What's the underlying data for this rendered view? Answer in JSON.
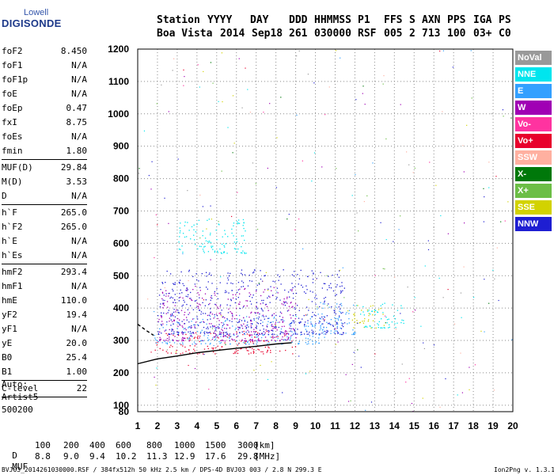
{
  "logo": {
    "line1": "Lowell",
    "line2": "DIGISONDE"
  },
  "header": {
    "row1": [
      "Station",
      "YYYY",
      "DAY",
      "DDD",
      "HHMMSS",
      "P1",
      "FFS",
      "S",
      "AXN",
      "PPS",
      "IGA",
      "PS"
    ],
    "row2": [
      "Boa Vista",
      "2014",
      "Sep18",
      "261",
      "030000",
      "RSF",
      "005",
      "2",
      "713",
      "100",
      "03+",
      "C0"
    ]
  },
  "params": {
    "g1": [
      {
        "label": "foF2",
        "value": "8.450"
      },
      {
        "label": "foF1",
        "value": "N/A"
      },
      {
        "label": "foF1p",
        "value": "N/A"
      },
      {
        "label": "foE",
        "value": "N/A"
      },
      {
        "label": "foEp",
        "value": "0.47"
      },
      {
        "label": "fxI",
        "value": "8.75"
      },
      {
        "label": "foEs",
        "value": "N/A"
      },
      {
        "label": "fmin",
        "value": "1.80"
      }
    ],
    "g2": [
      {
        "label": "MUF(D)",
        "value": "29.84"
      },
      {
        "label": "M(D)",
        "value": "3.53"
      },
      {
        "label": "D",
        "value": "N/A"
      }
    ],
    "g3": [
      {
        "label": "h`F",
        "value": "265.0"
      },
      {
        "label": "h`F2",
        "value": "265.0"
      },
      {
        "label": "h`E",
        "value": "N/A"
      },
      {
        "label": "h`Es",
        "value": "N/A"
      }
    ],
    "g4": [
      {
        "label": "hmF2",
        "value": "293.4"
      },
      {
        "label": "hmF1",
        "value": "N/A"
      },
      {
        "label": "hmE",
        "value": "110.0"
      },
      {
        "label": "yF2",
        "value": "19.4"
      },
      {
        "label": "yF1",
        "value": "N/A"
      },
      {
        "label": "yE",
        "value": "20.0"
      },
      {
        "label": "B0",
        "value": "25.4"
      },
      {
        "label": "B1",
        "value": "1.00"
      }
    ],
    "g5": [
      {
        "label": "C-level",
        "value": "22"
      }
    ]
  },
  "auto": {
    "line1": "Auto:",
    "line2": "Artist5",
    "line3": "500200"
  },
  "legend": [
    {
      "label": "NoVal",
      "color": "#999999"
    },
    {
      "label": "NNE",
      "color": "#00e5ee"
    },
    {
      "label": "E",
      "color": "#33a0ff"
    },
    {
      "label": "W",
      "color": "#a000b4"
    },
    {
      "label": "Vo-",
      "color": "#ff33a0"
    },
    {
      "label": "Vo+",
      "color": "#e8002c"
    },
    {
      "label": "SSW",
      "color": "#ffb0a0"
    },
    {
      "label": "X-",
      "color": "#00780a"
    },
    {
      "label": "X+",
      "color": "#6cbe46"
    },
    {
      "label": "SSE",
      "color": "#d2d200"
    },
    {
      "label": "NNW",
      "color": "#1e1ed2"
    }
  ],
  "chart_data": {
    "type": "scatter",
    "xlim": [
      1,
      20
    ],
    "ylim": [
      80,
      1200
    ],
    "x_ticks": [
      1,
      2,
      3,
      4,
      5,
      6,
      7,
      8,
      9,
      10,
      11,
      12,
      13,
      14,
      15,
      16,
      17,
      18,
      19,
      20
    ],
    "y_ticks": [
      80,
      100,
      200,
      300,
      400,
      500,
      600,
      700,
      800,
      900,
      1000,
      1100,
      1200
    ],
    "grid": true,
    "legend_position": "right",
    "clusters": [
      {
        "name": "Vo+",
        "x": [
          1.8,
          9.0
        ],
        "y": [
          260,
          330
        ]
      },
      {
        "name": "E",
        "x": [
          1.8,
          10.5
        ],
        "y": [
          290,
          380
        ]
      },
      {
        "name": "W",
        "x": [
          2.0,
          9.0
        ],
        "y": [
          300,
          470
        ]
      },
      {
        "name": "NNW",
        "x": [
          2.0,
          11.5
        ],
        "y": [
          320,
          520
        ]
      },
      {
        "name": "NNE",
        "x": [
          3.0,
          6.5
        ],
        "y": [
          570,
          680
        ]
      },
      {
        "name": "E",
        "x": [
          9.8,
          12.0
        ],
        "y": [
          320,
          420
        ]
      },
      {
        "name": "SSE",
        "x": [
          11.8,
          13.5
        ],
        "y": [
          340,
          410
        ]
      },
      {
        "name": "NNE",
        "x": [
          12.0,
          14.5
        ],
        "y": [
          340,
          420
        ]
      }
    ],
    "trace_curve": {
      "x": [
        1.0,
        2.0,
        3.0,
        4.0,
        5.0,
        6.0,
        7.0,
        8.0,
        8.8
      ],
      "y": [
        228,
        243,
        252,
        262,
        269,
        276,
        282,
        289,
        293
      ]
    },
    "dashed_curve": {
      "x": [
        1.0,
        1.4,
        1.8
      ],
      "y": [
        350,
        332,
        316
      ]
    },
    "scale_row": {
      "d_label": "D",
      "d_values": [
        "100",
        "200",
        "400",
        "600",
        "800",
        "1000",
        "1500",
        "3000"
      ],
      "d_unit": "[km]",
      "muf_label": "MUF",
      "muf_values": [
        "8.8",
        "9.0",
        "9.4",
        "10.2",
        "11.3",
        "12.9",
        "17.6",
        "29.8"
      ],
      "muf_unit": "[MHz]"
    }
  },
  "footer": {
    "left": "BVJ03_2014261030000.RSF / 384fx512h 50 kHz 2.5 km / DPS-4D BVJ03 003 / 2.8 N 299.3 E",
    "right": "Ion2Png v. 1.3.17"
  }
}
